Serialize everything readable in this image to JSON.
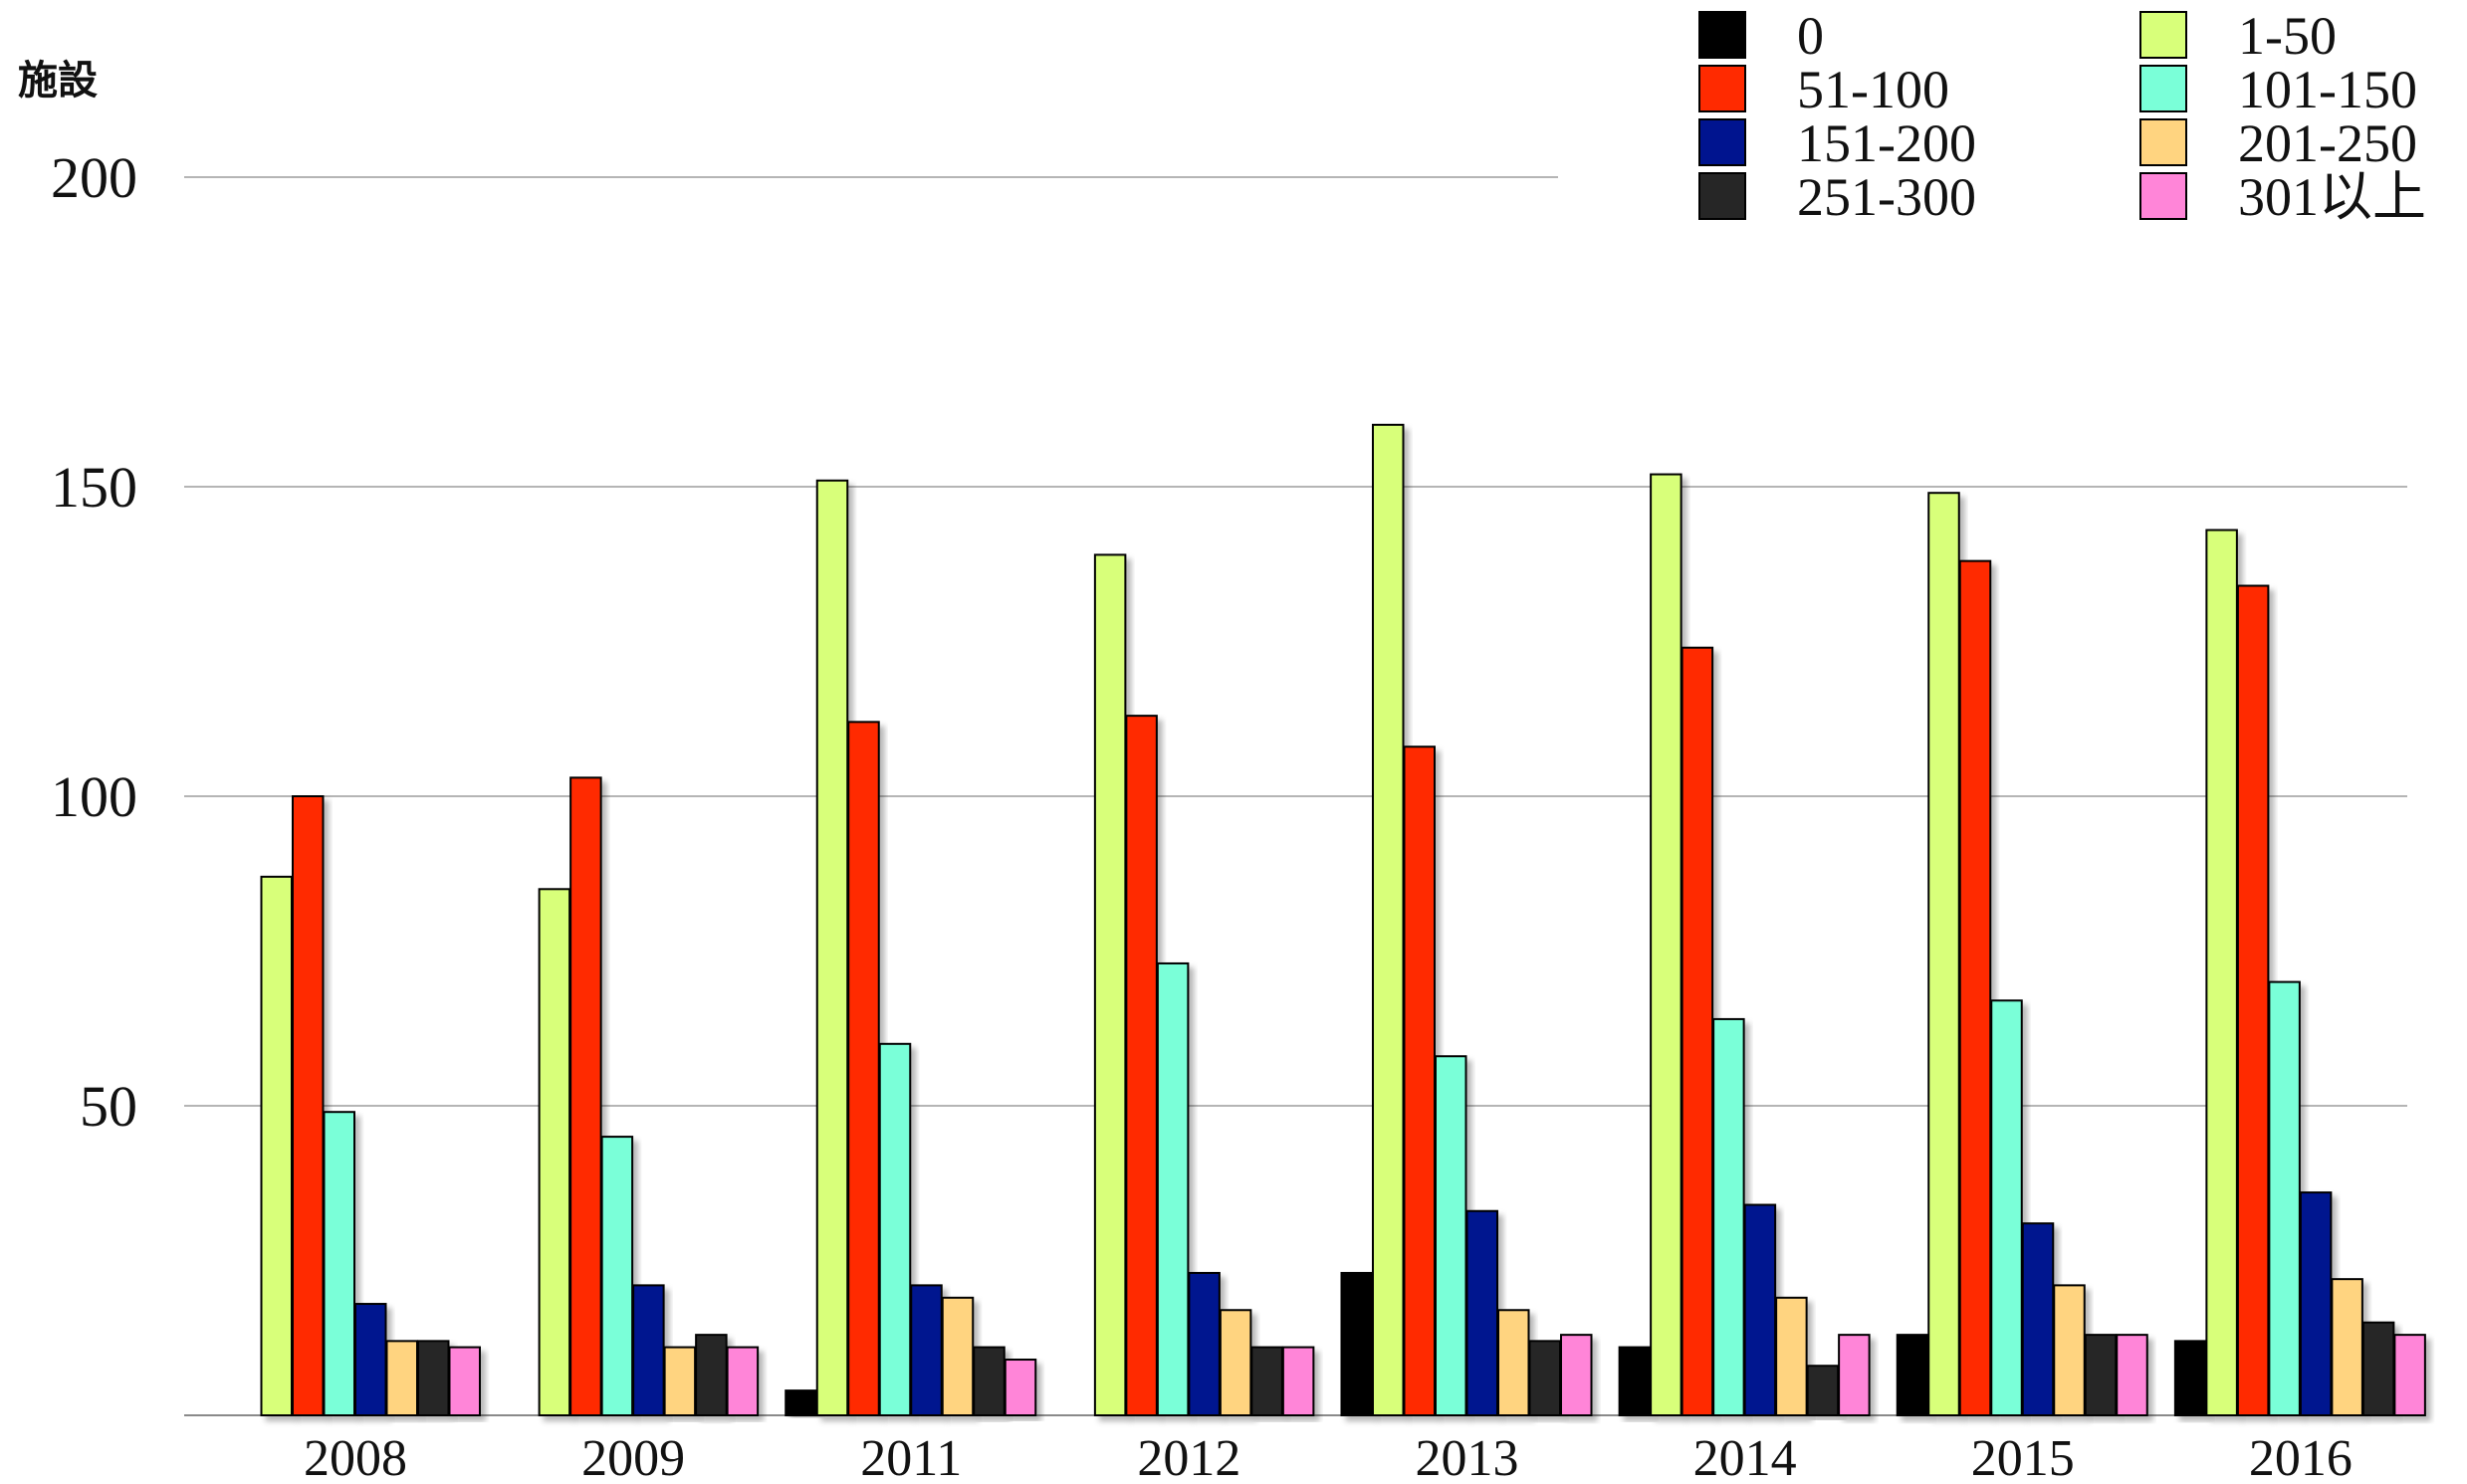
{
  "chart_data": {
    "type": "bar",
    "ylabel": "施設",
    "xlabel": "",
    "title": "",
    "ylim": [
      0,
      200
    ],
    "yticks": [
      50,
      100,
      150,
      200
    ],
    "grid": true,
    "legend_position": "top-right",
    "categories": [
      "2008",
      "2009",
      "2011",
      "2012",
      "2013",
      "2014",
      "2015",
      "2016"
    ],
    "series": [
      {
        "name": "0",
        "color": "#000000",
        "values": [
          0,
          0,
          4,
          0,
          23,
          11,
          13,
          12
        ]
      },
      {
        "name": "1-50",
        "color": "#d8ff7a",
        "values": [
          87,
          85,
          151,
          139,
          160,
          152,
          149,
          143
        ]
      },
      {
        "name": "51-100",
        "color": "#ff2a00",
        "values": [
          100,
          103,
          112,
          113,
          108,
          124,
          138,
          134
        ]
      },
      {
        "name": "101-150",
        "color": "#7affd8",
        "values": [
          49,
          45,
          60,
          73,
          58,
          64,
          67,
          70
        ]
      },
      {
        "name": "151-200",
        "color": "#00148f",
        "values": [
          18,
          21,
          21,
          23,
          33,
          34,
          31,
          36
        ]
      },
      {
        "name": "201-250",
        "color": "#ffd480",
        "values": [
          12,
          11,
          19,
          17,
          17,
          19,
          21,
          22
        ]
      },
      {
        "name": "251-300",
        "color": "#262626",
        "values": [
          12,
          13,
          11,
          11,
          12,
          8,
          13,
          15
        ]
      },
      {
        "name": "301以上",
        "color": "#ff85d8",
        "values": [
          11,
          11,
          9,
          11,
          13,
          13,
          13,
          13
        ]
      }
    ]
  }
}
